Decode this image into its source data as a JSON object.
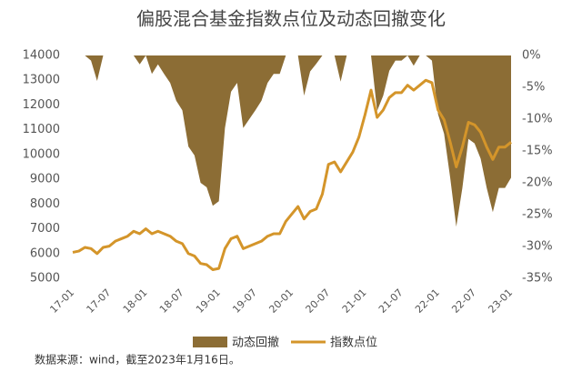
{
  "chart_data": {
    "type": "area_line",
    "title": "偏股混合基金指数点位及动态回撤变化",
    "source": "数据来源：wind，截至2023年1月16日。",
    "categories": [
      "17-01",
      null,
      null,
      null,
      null,
      null,
      "17-07",
      null,
      null,
      null,
      null,
      null,
      "18-01",
      null,
      null,
      null,
      null,
      null,
      "18-07",
      null,
      null,
      null,
      null,
      null,
      "19-01",
      null,
      null,
      null,
      null,
      null,
      "19-07",
      null,
      null,
      null,
      null,
      null,
      "20-01",
      null,
      null,
      null,
      null,
      null,
      "20-07",
      null,
      null,
      null,
      null,
      null,
      "21-01",
      null,
      null,
      null,
      null,
      null,
      "21-07",
      null,
      null,
      null,
      null,
      null,
      "22-01",
      null,
      null,
      null,
      null,
      null,
      "22-07",
      null,
      null,
      null,
      null,
      null,
      "23-01"
    ],
    "series": [
      {
        "name": "动态回撤",
        "color": "#8c6d35",
        "axis": "y2",
        "kind": "area",
        "values": [
          0,
          0,
          0,
          -0.8,
          -4,
          0,
          0,
          0,
          0,
          0,
          0,
          -1.4,
          0,
          -2.9,
          -1.4,
          -2.9,
          -4.3,
          -7.1,
          -8.6,
          -14.3,
          -15.7,
          -20,
          -20.7,
          -23.6,
          -22.9,
          -11.4,
          -5.7,
          -4.3,
          -11.4,
          -10,
          -8.6,
          -7.1,
          -4.3,
          -2.9,
          -2.9,
          0,
          0,
          0,
          -6.3,
          -2.5,
          -1.3,
          0,
          0,
          0,
          -4.1,
          0,
          0,
          0,
          0,
          0,
          -8.7,
          -6.3,
          -2.4,
          -0.8,
          -0.8,
          0,
          -1.6,
          0,
          0,
          -0.8,
          -9.2,
          -12.3,
          -19.2,
          -26.9,
          -20.8,
          -13.1,
          -13.8,
          -16.2,
          -20.8,
          -24.6,
          -20.8,
          -20.8,
          -19.2
        ]
      },
      {
        "name": "指数点位",
        "color": "#d4952a",
        "axis": "y",
        "kind": "line",
        "values": [
          6050,
          6100,
          6250,
          6200,
          6000,
          6250,
          6300,
          6500,
          6600,
          6700,
          6900,
          6800,
          7000,
          6800,
          6900,
          6800,
          6700,
          6500,
          6400,
          6000,
          5900,
          5600,
          5550,
          5350,
          5400,
          6200,
          6600,
          6700,
          6200,
          6300,
          6400,
          6500,
          6700,
          6800,
          6800,
          7300,
          7600,
          7900,
          7400,
          7700,
          7800,
          8400,
          9600,
          9700,
          9300,
          9700,
          10100,
          10700,
          11600,
          12600,
          11500,
          11800,
          12300,
          12500,
          12500,
          12800,
          12600,
          12800,
          13000,
          12900,
          11800,
          11400,
          10500,
          9500,
          10300,
          11300,
          11200,
          10900,
          10300,
          9800,
          10300,
          10300,
          10500
        ]
      }
    ],
    "ylim": [
      5000,
      14000
    ],
    "yticks": [
      5000,
      6000,
      7000,
      8000,
      9000,
      10000,
      11000,
      12000,
      13000,
      14000
    ],
    "y2lim": [
      -35,
      0
    ],
    "y2ticks": [
      {
        "value": 0,
        "label": "0%"
      },
      {
        "value": -5,
        "label": "-5%"
      },
      {
        "value": -10,
        "label": "-10%"
      },
      {
        "value": -15,
        "label": "-15%"
      },
      {
        "value": -20,
        "label": "-20%"
      },
      {
        "value": -25,
        "label": "-25%"
      },
      {
        "value": -30,
        "label": "-30%"
      },
      {
        "value": -35,
        "label": "-35%"
      }
    ]
  }
}
